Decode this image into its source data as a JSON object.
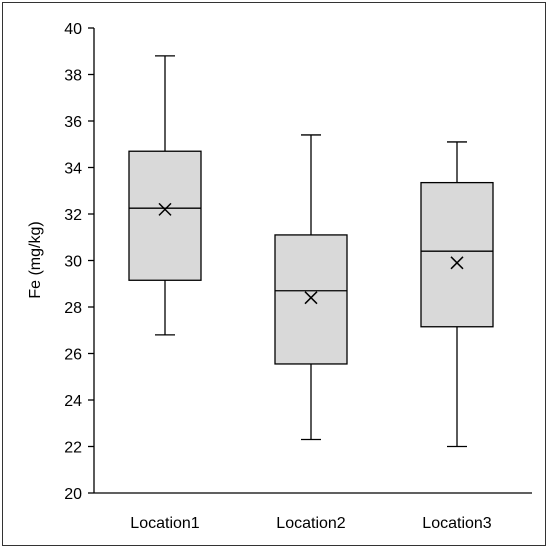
{
  "chart_data": {
    "type": "boxplot",
    "title": "",
    "xlabel": "",
    "ylabel": "Fe (mg/kg)",
    "ylim": [
      20,
      40
    ],
    "yticks": [
      20,
      22,
      24,
      26,
      28,
      30,
      32,
      34,
      36,
      38,
      40
    ],
    "grid": false,
    "legend": "none",
    "categories": [
      "Location1",
      "Location2",
      "Location3"
    ],
    "boxes": [
      {
        "min": 26.8,
        "q1": 29.15,
        "median": 32.25,
        "q3": 34.7,
        "max": 38.8,
        "mean": 32.2
      },
      {
        "min": 22.3,
        "q1": 25.55,
        "median": 28.7,
        "q3": 31.1,
        "max": 35.4,
        "mean": 28.4
      },
      {
        "min": 22.0,
        "q1": 27.15,
        "median": 30.4,
        "q3": 33.35,
        "max": 35.1,
        "mean": 29.9
      }
    ],
    "colors": {
      "box_fill": "#d9d9d9",
      "stroke": "#000000"
    }
  }
}
